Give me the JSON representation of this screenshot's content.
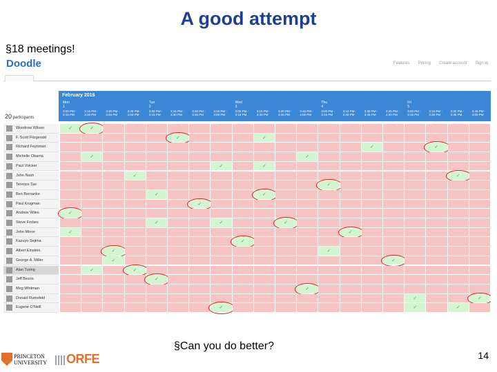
{
  "slide": {
    "title": "A good attempt",
    "bullet_top": "§18 meetings!",
    "bullet_bottom": "§Can you do better?",
    "page_number": "14"
  },
  "doodle": {
    "logo": "Doodle",
    "nav": [
      "Features",
      "Pricing",
      "Create account",
      "Sign in"
    ],
    "month": "February 2016",
    "days": [
      {
        "label": "Mon 1",
        "col": 0
      },
      {
        "label": "Tue 2",
        "col": 4
      },
      {
        "label": "Wed 3",
        "col": 8
      },
      {
        "label": "Thu 4",
        "col": 12
      },
      {
        "label": "Fri 5",
        "col": 16
      }
    ],
    "times": [
      "3:00 PM - 3:15 PM",
      "3:15 PM - 3:30 PM",
      "3:30 PM - 3:45 PM",
      "3:45 PM - 4:00 PM"
    ],
    "participant_count": "20",
    "participant_label": "participants",
    "check_glyph": "✓",
    "participants": [
      {
        "name": "Woodrow Wilson",
        "yes": [
          0,
          1
        ],
        "circled": [
          1
        ]
      },
      {
        "name": "F. Scott Fitzgerald",
        "yes": [
          5,
          9
        ],
        "circled": [
          5
        ]
      },
      {
        "name": "Richard Feynman",
        "yes": [
          14,
          17
        ],
        "circled": [
          17
        ]
      },
      {
        "name": "Michelle Obama",
        "yes": [
          1,
          11
        ],
        "circled": []
      },
      {
        "name": "Paul Volcker",
        "yes": [
          7,
          9
        ],
        "circled": []
      },
      {
        "name": "John Nash",
        "yes": [
          3,
          18
        ],
        "circled": [
          18
        ]
      },
      {
        "name": "Terence Tao",
        "yes": [
          12
        ],
        "circled": [
          12
        ]
      },
      {
        "name": "Ben Bernanke",
        "yes": [
          4,
          9
        ],
        "circled": [
          9
        ]
      },
      {
        "name": "Paul Krugman",
        "yes": [
          6
        ],
        "circled": [
          6
        ]
      },
      {
        "name": "Andrew Wiles",
        "yes": [
          0
        ],
        "circled": [
          0
        ]
      },
      {
        "name": "Steve Forbes",
        "yes": [
          4,
          7,
          10
        ],
        "circled": [
          10
        ]
      },
      {
        "name": "John Mirror",
        "yes": [
          0,
          13
        ],
        "circled": [
          13
        ]
      },
      {
        "name": "Kazuyo Sejima",
        "yes": [
          8
        ],
        "circled": [
          8
        ]
      },
      {
        "name": "Albert Einstein",
        "yes": [
          2,
          12
        ],
        "circled": [
          2
        ]
      },
      {
        "name": "George A. Miller",
        "yes": [
          2,
          15
        ],
        "circled": [
          15
        ]
      },
      {
        "name": "Alan Turing",
        "yes": [
          1,
          3
        ],
        "circled": [
          3
        ]
      },
      {
        "name": "Jeff Bezos",
        "yes": [
          4
        ],
        "circled": [
          4
        ]
      },
      {
        "name": "Meg Whitman",
        "yes": [
          11
        ],
        "circled": [
          11
        ]
      },
      {
        "name": "Donald Rumsfeld",
        "yes": [
          16,
          19
        ],
        "circled": [
          19
        ]
      },
      {
        "name": "Eugene O'Neill",
        "yes": [
          7,
          16,
          18
        ],
        "circled": [
          7
        ]
      }
    ],
    "selected_participant": 15
  },
  "colors": {
    "title": "#1f3f8f",
    "header": "#3b87d6",
    "no": "#f7c4c4",
    "yes": "#d4f5d2",
    "circle": "#e02020",
    "orfe": "#e2702a"
  },
  "logos": {
    "princeton": "PRINCETON UNIVERSITY",
    "orfe": "ORFE"
  }
}
